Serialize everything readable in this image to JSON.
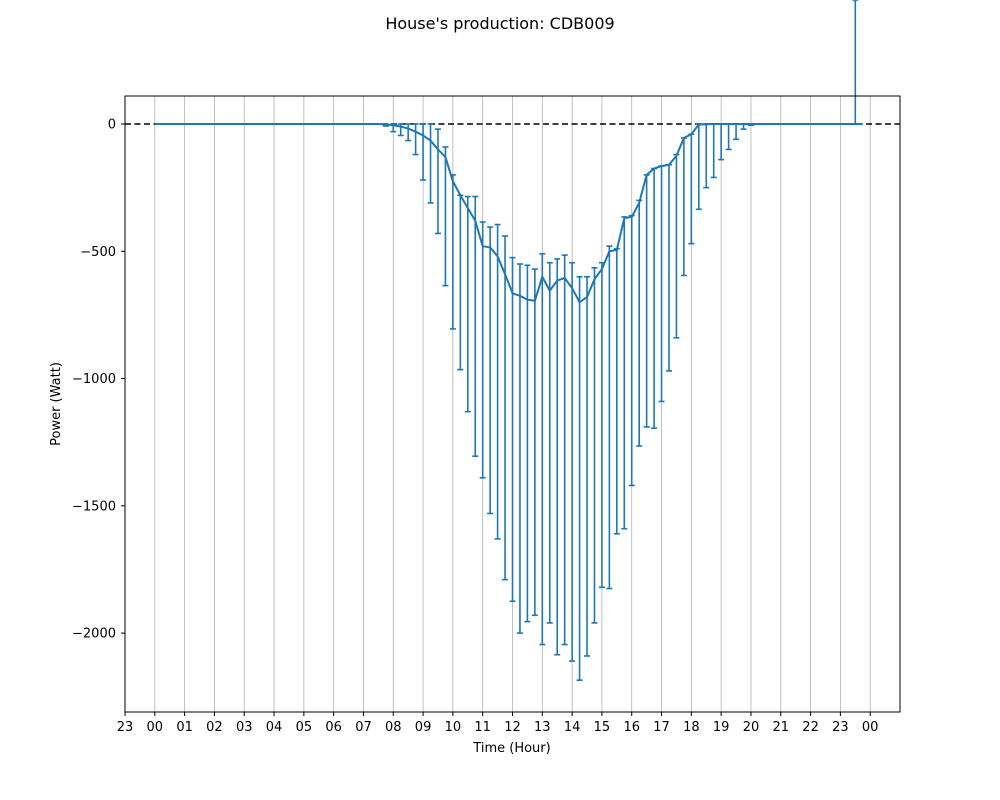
{
  "chart_data": {
    "type": "line",
    "title": "House's production: CDB009",
    "xlabel": "Time (Hour)",
    "ylabel": "Power (Watt)",
    "x_tick_labels": [
      "23",
      "00",
      "01",
      "02",
      "03",
      "04",
      "05",
      "06",
      "07",
      "08",
      "09",
      "10",
      "11",
      "12",
      "13",
      "14",
      "15",
      "16",
      "17",
      "18",
      "19",
      "20",
      "21",
      "22",
      "23",
      "00"
    ],
    "y_ticks": [
      0,
      -500,
      -1000,
      -1500,
      -2000
    ],
    "y_tick_labels": [
      "0",
      "−500",
      "−1000",
      "−1500",
      "−2000"
    ],
    "xlim": [
      -1.0,
      25.0
    ],
    "ylim": [
      -2310,
      110
    ],
    "grid": "vertical",
    "reference_line": {
      "y": 0,
      "style": "dashed",
      "color": "#000000"
    },
    "series_color": "#1f77b4",
    "grid_color": "#b0b0b0",
    "series": [
      {
        "x": [
          0,
          0.25,
          0.5,
          0.75,
          1,
          1.25,
          1.5,
          1.75,
          2,
          2.25,
          2.5,
          2.75,
          3,
          3.25,
          3.5,
          3.75,
          4,
          4.25,
          4.5,
          4.75,
          5,
          5.25,
          5.5,
          5.75,
          6,
          6.25,
          6.5,
          6.75,
          7,
          7.25,
          7.5,
          7.75,
          8,
          8.25,
          8.5,
          8.75,
          9,
          9.25,
          9.5,
          9.75,
          10,
          10.25,
          10.5,
          10.75,
          11,
          11.25,
          11.5,
          11.75,
          12,
          12.25,
          12.5,
          12.75,
          13,
          13.25,
          13.5,
          13.75,
          14,
          14.25,
          14.5,
          14.75,
          15,
          15.25,
          15.5,
          15.75,
          16,
          16.25,
          16.5,
          16.75,
          17,
          17.25,
          17.5,
          17.75,
          18,
          18.25,
          18.5,
          18.75,
          19,
          19.25,
          19.5,
          19.75,
          20,
          20.25,
          20.5,
          20.75,
          21,
          21.25,
          21.5,
          21.75,
          22,
          22.25,
          22.5,
          22.75,
          23,
          23.25,
          23.5,
          23.75
        ],
        "y": [
          0,
          0,
          0,
          0,
          0,
          0,
          0,
          0,
          0,
          0,
          0,
          0,
          0,
          0,
          0,
          0,
          0,
          0,
          0,
          0,
          0,
          0,
          0,
          0,
          0,
          0,
          0,
          0,
          0,
          0,
          0,
          -2,
          -5,
          -10,
          -18,
          -30,
          -45,
          -65,
          -100,
          -130,
          -225,
          -280,
          -330,
          -380,
          -480,
          -485,
          -520,
          -590,
          -665,
          -675,
          -690,
          -695,
          -600,
          -655,
          -615,
          -605,
          -645,
          -700,
          -680,
          -610,
          -570,
          -500,
          -495,
          -370,
          -365,
          -310,
          -200,
          -175,
          -165,
          -160,
          -125,
          -55,
          -40,
          -2,
          -1,
          0,
          0,
          0,
          0,
          0,
          0,
          0,
          0,
          0,
          0,
          0,
          0,
          0,
          0,
          0,
          0,
          0,
          0,
          0,
          0,
          0
        ],
        "err_low": [
          0,
          0,
          0,
          0,
          0,
          0,
          0,
          0,
          0,
          0,
          0,
          0,
          0,
          0,
          0,
          0,
          0,
          0,
          0,
          0,
          0,
          0,
          0,
          0,
          0,
          0,
          0,
          0,
          0,
          0,
          0,
          -8,
          -30,
          -45,
          -65,
          -120,
          -220,
          -310,
          -430,
          -635,
          -805,
          -965,
          -1130,
          -1305,
          -1390,
          -1530,
          -1630,
          -1790,
          -1875,
          -2000,
          -1955,
          -1930,
          -2045,
          -1960,
          -2085,
          -2045,
          -2110,
          -2185,
          -2090,
          -1960,
          -1820,
          -1825,
          -1610,
          -1590,
          -1420,
          -1265,
          -1190,
          -1195,
          -1090,
          -970,
          -840,
          -595,
          -470,
          -335,
          -250,
          -210,
          -140,
          -100,
          -60,
          -20,
          -5,
          0,
          0,
          0,
          0,
          0,
          0,
          0,
          0,
          0,
          0,
          0,
          0,
          0,
          0
        ],
        "err_high": [
          0,
          0,
          0,
          0,
          0,
          0,
          0,
          0,
          0,
          0,
          0,
          0,
          0,
          0,
          0,
          0,
          0,
          0,
          0,
          0,
          0,
          0,
          0,
          0,
          0,
          0,
          0,
          0,
          0,
          0,
          0,
          0,
          0,
          0,
          0,
          0,
          0,
          0,
          -20,
          -90,
          -200,
          -280,
          -285,
          -285,
          -385,
          -405,
          -395,
          -440,
          -525,
          -550,
          -555,
          -570,
          -510,
          -545,
          -530,
          -515,
          -545,
          -600,
          -600,
          -565,
          -545,
          -480,
          -490,
          -365,
          -360,
          -300,
          -200,
          -175,
          -165,
          -160,
          -120,
          -55,
          -40,
          0,
          0,
          0,
          0,
          0,
          0,
          0,
          0,
          0,
          0,
          0,
          0,
          0,
          0,
          0,
          0,
          0,
          0,
          0,
          0,
          0
        ]
      }
    ]
  }
}
